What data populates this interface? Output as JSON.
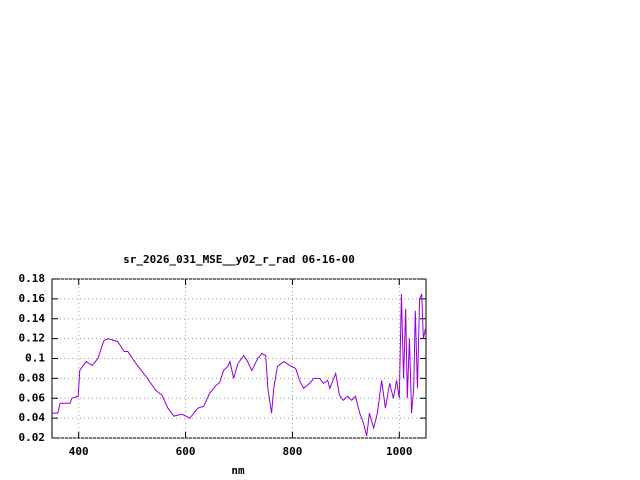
{
  "chart_data": {
    "type": "line",
    "title": "sr_2026_031_MSE__y02_r_rad 06-16-00",
    "x_label": "nm",
    "x": [
      350,
      361,
      365,
      384,
      387,
      399,
      402,
      414,
      425,
      436,
      447,
      455,
      473,
      485,
      492,
      507,
      526,
      544,
      556,
      567,
      578,
      593,
      608,
      623,
      634,
      645,
      657,
      664,
      671,
      679,
      683,
      690,
      698,
      709,
      716,
      724,
      735,
      743,
      750,
      754,
      761,
      765,
      772,
      784,
      795,
      806,
      814,
      821,
      832,
      840,
      851,
      858,
      866,
      870,
      881,
      888,
      895,
      903,
      911,
      918,
      926,
      933,
      939,
      944,
      952,
      959,
      967,
      974,
      982,
      989,
      995,
      1000,
      1004,
      1008,
      1012,
      1015,
      1019,
      1023,
      1027,
      1030,
      1034,
      1038,
      1042,
      1045,
      1049
    ],
    "series": [
      {
        "name": "sr_2026_031_MSE__y02_r_rad",
        "color": "#9400d3",
        "values": [
          0.045,
          0.045,
          0.055,
          0.055,
          0.06,
          0.062,
          0.088,
          0.097,
          0.093,
          0.1,
          0.118,
          0.12,
          0.117,
          0.107,
          0.107,
          0.095,
          0.082,
          0.068,
          0.063,
          0.05,
          0.042,
          0.044,
          0.04,
          0.05,
          0.052,
          0.065,
          0.073,
          0.076,
          0.088,
          0.092,
          0.097,
          0.08,
          0.095,
          0.103,
          0.097,
          0.088,
          0.1,
          0.105,
          0.103,
          0.07,
          0.045,
          0.07,
          0.092,
          0.097,
          0.093,
          0.09,
          0.077,
          0.07,
          0.075,
          0.08,
          0.08,
          0.075,
          0.078,
          0.07,
          0.085,
          0.063,
          0.058,
          0.062,
          0.058,
          0.062,
          0.045,
          0.035,
          0.022,
          0.045,
          0.03,
          0.045,
          0.078,
          0.05,
          0.075,
          0.06,
          0.078,
          0.06,
          0.165,
          0.08,
          0.15,
          0.06,
          0.12,
          0.045,
          0.07,
          0.148,
          0.07,
          0.16,
          0.165,
          0.12,
          0.13
        ]
      }
    ],
    "xlim": [
      350,
      1050
    ],
    "xticks": [
      400,
      600,
      800,
      1000
    ],
    "ylim": [
      0.02,
      0.18
    ],
    "yticks": [
      0.02,
      0.04,
      0.06,
      0.08,
      0.1,
      0.12,
      0.14,
      0.16,
      0.18
    ],
    "grid": true
  }
}
